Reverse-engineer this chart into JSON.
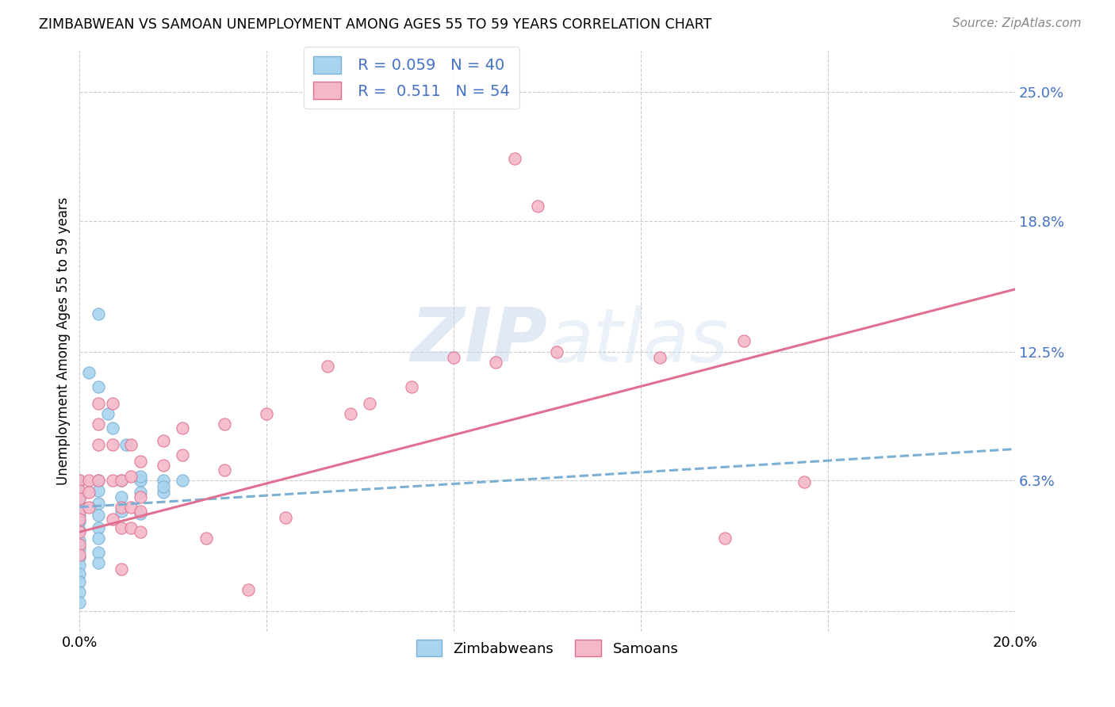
{
  "title": "ZIMBABWEAN VS SAMOAN UNEMPLOYMENT AMONG AGES 55 TO 59 YEARS CORRELATION CHART",
  "source": "Source: ZipAtlas.com",
  "ylabel": "Unemployment Among Ages 55 to 59 years",
  "xlim": [
    0,
    0.2
  ],
  "ylim": [
    -0.01,
    0.27
  ],
  "ytick_labels_right": [
    "25.0%",
    "18.8%",
    "12.5%",
    "6.3%",
    ""
  ],
  "ytick_values_right": [
    0.25,
    0.188,
    0.125,
    0.063,
    0.0
  ],
  "color_zim": "#A8D4F0",
  "color_zim_edge": "#7BAFD4",
  "color_sam": "#F5B8C8",
  "color_sam_edge": "#E07090",
  "color_zim_line": "#7BAFD4",
  "color_sam_line": "#E07090",
  "color_rn": "#4472C4",
  "watermark_zip": "#C8D8EC",
  "watermark_atlas": "#C8D8EC",
  "grid_color": "#CCCCCC",
  "background_color": "#FFFFFF",
  "zim_scatter": [
    [
      0.0,
      0.063
    ],
    [
      0.0,
      0.058
    ],
    [
      0.0,
      0.054
    ],
    [
      0.0,
      0.05
    ],
    [
      0.0,
      0.046
    ],
    [
      0.0,
      0.043
    ],
    [
      0.0,
      0.039
    ],
    [
      0.0,
      0.034
    ],
    [
      0.0,
      0.03
    ],
    [
      0.0,
      0.026
    ],
    [
      0.0,
      0.022
    ],
    [
      0.0,
      0.018
    ],
    [
      0.0,
      0.014
    ],
    [
      0.0,
      0.009
    ],
    [
      0.0,
      0.004
    ],
    [
      0.004,
      0.063
    ],
    [
      0.004,
      0.058
    ],
    [
      0.004,
      0.052
    ],
    [
      0.004,
      0.046
    ],
    [
      0.004,
      0.04
    ],
    [
      0.004,
      0.035
    ],
    [
      0.004,
      0.028
    ],
    [
      0.004,
      0.023
    ],
    [
      0.009,
      0.063
    ],
    [
      0.009,
      0.055
    ],
    [
      0.009,
      0.048
    ],
    [
      0.013,
      0.063
    ],
    [
      0.013,
      0.057
    ],
    [
      0.013,
      0.047
    ],
    [
      0.018,
      0.063
    ],
    [
      0.018,
      0.057
    ],
    [
      0.022,
      0.063
    ],
    [
      0.004,
      0.143
    ],
    [
      0.018,
      0.06
    ],
    [
      0.002,
      0.115
    ],
    [
      0.004,
      0.108
    ],
    [
      0.007,
      0.088
    ],
    [
      0.01,
      0.08
    ],
    [
      0.013,
      0.065
    ],
    [
      0.006,
      0.095
    ]
  ],
  "sam_scatter": [
    [
      0.0,
      0.063
    ],
    [
      0.0,
      0.058
    ],
    [
      0.0,
      0.054
    ],
    [
      0.0,
      0.048
    ],
    [
      0.0,
      0.044
    ],
    [
      0.0,
      0.038
    ],
    [
      0.0,
      0.032
    ],
    [
      0.0,
      0.027
    ],
    [
      0.002,
      0.063
    ],
    [
      0.002,
      0.057
    ],
    [
      0.002,
      0.05
    ],
    [
      0.004,
      0.1
    ],
    [
      0.004,
      0.09
    ],
    [
      0.004,
      0.08
    ],
    [
      0.004,
      0.063
    ],
    [
      0.007,
      0.1
    ],
    [
      0.007,
      0.08
    ],
    [
      0.007,
      0.063
    ],
    [
      0.007,
      0.044
    ],
    [
      0.009,
      0.063
    ],
    [
      0.009,
      0.05
    ],
    [
      0.009,
      0.04
    ],
    [
      0.009,
      0.02
    ],
    [
      0.011,
      0.08
    ],
    [
      0.011,
      0.065
    ],
    [
      0.011,
      0.05
    ],
    [
      0.011,
      0.04
    ],
    [
      0.013,
      0.072
    ],
    [
      0.013,
      0.055
    ],
    [
      0.013,
      0.048
    ],
    [
      0.013,
      0.038
    ],
    [
      0.018,
      0.082
    ],
    [
      0.018,
      0.07
    ],
    [
      0.022,
      0.088
    ],
    [
      0.022,
      0.075
    ],
    [
      0.031,
      0.09
    ],
    [
      0.031,
      0.068
    ],
    [
      0.04,
      0.095
    ],
    [
      0.053,
      0.118
    ],
    [
      0.058,
      0.095
    ],
    [
      0.062,
      0.1
    ],
    [
      0.071,
      0.108
    ],
    [
      0.08,
      0.122
    ],
    [
      0.089,
      0.12
    ],
    [
      0.093,
      0.218
    ],
    [
      0.098,
      0.195
    ],
    [
      0.102,
      0.125
    ],
    [
      0.124,
      0.122
    ],
    [
      0.138,
      0.035
    ],
    [
      0.142,
      0.13
    ],
    [
      0.155,
      0.062
    ],
    [
      0.044,
      0.045
    ],
    [
      0.036,
      0.01
    ],
    [
      0.027,
      0.035
    ]
  ],
  "zim_trend_x": [
    0.0,
    0.2
  ],
  "zim_trend_y": [
    0.05,
    0.078
  ],
  "sam_trend_x": [
    0.0,
    0.2
  ],
  "sam_trend_y": [
    0.038,
    0.155
  ]
}
